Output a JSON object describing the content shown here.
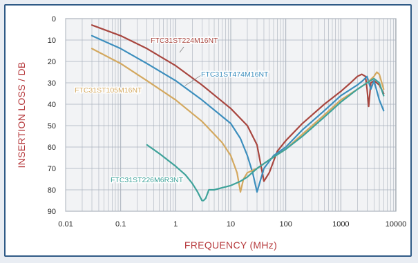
{
  "chart_data": {
    "type": "line",
    "title": "",
    "xlabel": "FREQUENCY (MHz)",
    "ylabel": "INSERTION LOSS / DB",
    "x_scale": "log",
    "xlim": [
      0.01,
      10000
    ],
    "ylim": [
      0,
      90
    ],
    "y_inverted": true,
    "grid": true,
    "x_ticks": [
      "0.01",
      "0.1",
      "1",
      "10",
      "100",
      "1000",
      "10000"
    ],
    "y_ticks": [
      "0",
      "10",
      "20",
      "30",
      "40",
      "50",
      "60",
      "70",
      "80",
      "90"
    ],
    "colors": {
      "plot_background": "#f2f3f5",
      "grid": "#a8b0bb",
      "frame": "#2f5a86",
      "axis_title": "#b6393c"
    },
    "series": [
      {
        "name": "FTC31ST224M16NT",
        "color": "#a8463f",
        "x": [
          0.03,
          0.1,
          0.3,
          1,
          3,
          10,
          20,
          30,
          40,
          50,
          70,
          100,
          200,
          500,
          1000,
          1500,
          2000,
          2400,
          2800,
          3000,
          3200,
          3500,
          4000,
          5000,
          6000
        ],
        "y": [
          3,
          8,
          14,
          22,
          31,
          42,
          50,
          59,
          76,
          72,
          62,
          57,
          49,
          40,
          34,
          30,
          27,
          26,
          27,
          33,
          41,
          30,
          29,
          31,
          35
        ]
      },
      {
        "name": "FTC31ST474M16NT",
        "color": "#3c8ebd",
        "x": [
          0.03,
          0.1,
          0.3,
          1,
          3,
          10,
          15,
          20,
          25,
          30,
          40,
          60,
          100,
          200,
          500,
          1000,
          2000,
          2500,
          3000,
          3500,
          4000,
          5000,
          6000
        ],
        "y": [
          8,
          14,
          21,
          29,
          38,
          49,
          56,
          64,
          72,
          81,
          70,
          64,
          60,
          52,
          43,
          36,
          31,
          29,
          27,
          33,
          29,
          38,
          43
        ]
      },
      {
        "name": "FTC31ST105M16NT",
        "color": "#d3a85f",
        "x": [
          0.03,
          0.1,
          0.3,
          1,
          3,
          7,
          10,
          13,
          15,
          17,
          20,
          30,
          50,
          100,
          200,
          500,
          1000,
          2000,
          3000,
          4000,
          4500,
          5000,
          6000
        ],
        "y": [
          14,
          21,
          29,
          38,
          48,
          58,
          64,
          72,
          81,
          75,
          72,
          70,
          66,
          61,
          54,
          45,
          38,
          33,
          30,
          27,
          25,
          26,
          33
        ]
      },
      {
        "name": "FTC31ST226M6R3NT",
        "color": "#3ea29a",
        "x": [
          0.3,
          0.5,
          1,
          1.5,
          2,
          2.5,
          3,
          3.2,
          3.5,
          4,
          5,
          7,
          10,
          15,
          20,
          30,
          50,
          100,
          200,
          500,
          1000,
          2000,
          3000,
          4000,
          5000,
          6000
        ],
        "y": [
          59,
          63,
          69,
          73,
          77,
          81,
          85,
          85,
          84,
          80,
          80,
          79,
          78,
          76,
          74,
          70,
          66,
          61,
          55,
          46,
          39,
          33,
          30,
          28,
          30,
          36
        ]
      }
    ],
    "annotations": [
      {
        "text": "FTC31ST224M16NT",
        "series": 0
      },
      {
        "text": "FTC31ST474M16NT",
        "series": 1
      },
      {
        "text": "FTC31ST105M16NT",
        "series": 2
      },
      {
        "text": "FTC31ST226M6R3NT",
        "series": 3
      }
    ]
  }
}
